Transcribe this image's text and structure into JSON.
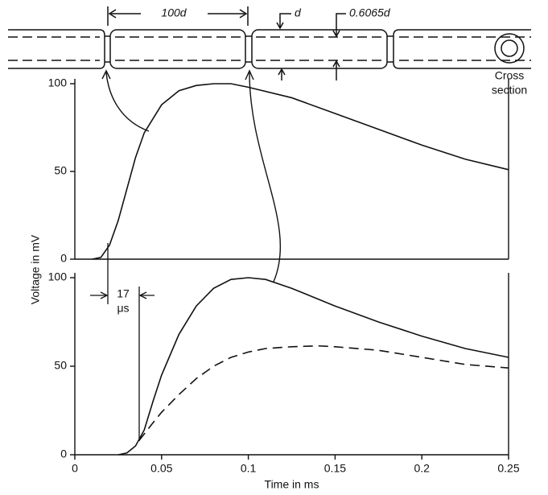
{
  "chart_data": [
    {
      "type": "line",
      "ylim": [
        0,
        100
      ],
      "yticks": [
        0,
        50,
        100
      ],
      "xlim": [
        0,
        0.25
      ],
      "series": [
        {
          "color": "#111111",
          "dash": false,
          "x": [
            0.01,
            0.015,
            0.02,
            0.025,
            0.03,
            0.035,
            0.04,
            0.05,
            0.06,
            0.07,
            0.08,
            0.09,
            0.1,
            0.125,
            0.15,
            0.175,
            0.2,
            0.225,
            0.25
          ],
          "values": [
            0,
            1,
            8,
            22,
            40,
            58,
            72,
            88,
            96,
            99,
            100,
            100,
            98,
            92,
            83,
            74,
            65,
            57,
            51
          ]
        }
      ]
    },
    {
      "type": "line",
      "ylim": [
        0,
        100
      ],
      "yticks": [
        0,
        50,
        100
      ],
      "xlim": [
        0,
        0.25
      ],
      "xticks": [
        0,
        0.05,
        0.1,
        0.15,
        0.2,
        0.25
      ],
      "xlabel": "Time in ms",
      "series": [
        {
          "color": "#111111",
          "dash": false,
          "x": [
            0.025,
            0.03,
            0.035,
            0.04,
            0.045,
            0.05,
            0.06,
            0.07,
            0.08,
            0.09,
            0.1,
            0.11,
            0.125,
            0.15,
            0.175,
            0.2,
            0.225,
            0.25
          ],
          "values": [
            0,
            1,
            5,
            14,
            30,
            45,
            68,
            84,
            94,
            99,
            100,
            99,
            94,
            84,
            75,
            67,
            60,
            55
          ]
        },
        {
          "color": "#111111",
          "dash": true,
          "x": [
            0.037,
            0.045,
            0.05,
            0.06,
            0.07,
            0.08,
            0.09,
            0.1,
            0.11,
            0.125,
            0.14,
            0.15,
            0.175,
            0.2,
            0.225,
            0.25
          ],
          "values": [
            8,
            18,
            24,
            34,
            43,
            50,
            55,
            58,
            60,
            61,
            61.5,
            61,
            59,
            55,
            51,
            49
          ]
        }
      ]
    }
  ],
  "figure": {
    "ylabel": "Voltage in mV",
    "internode": "100d",
    "outer": "d",
    "inner": "0.6065d",
    "cross1": "Cross",
    "cross2": "section",
    "delay": "17",
    "delay_unit": "μs"
  }
}
